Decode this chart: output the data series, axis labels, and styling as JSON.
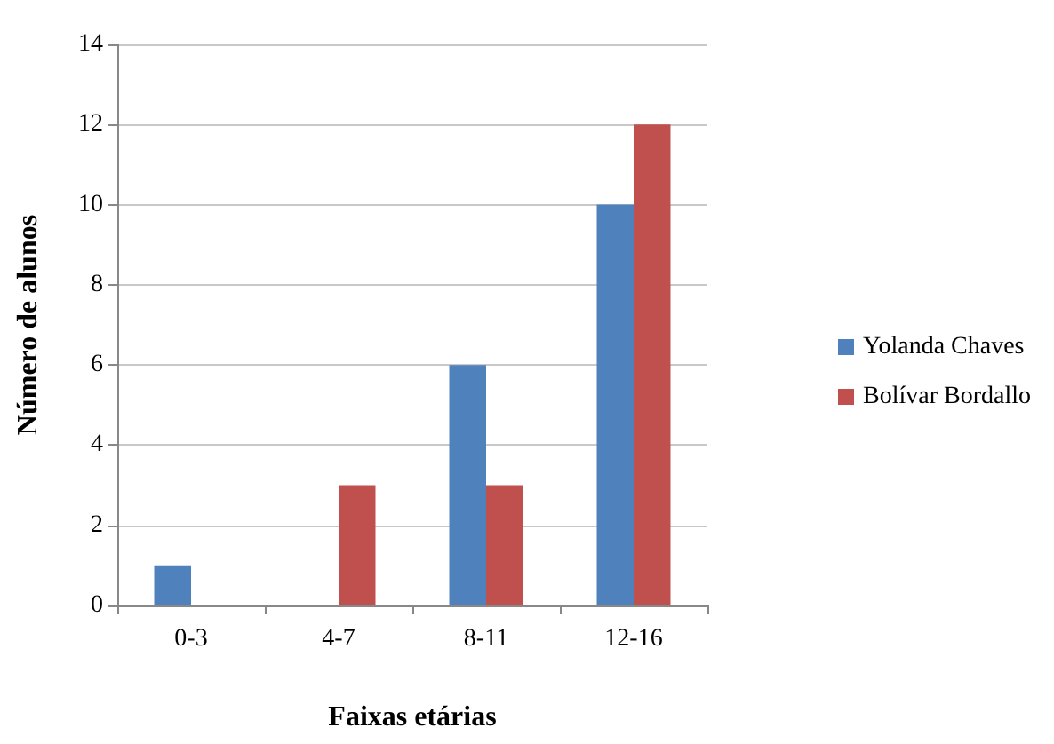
{
  "chart_data": {
    "type": "bar",
    "xlabel": "Faixas etárias",
    "ylabel": "Número de alunos",
    "categories": [
      "0-3",
      "4-7",
      "8-11",
      "12-16"
    ],
    "series": [
      {
        "name": "Yolanda Chaves",
        "color": "#4f81bd",
        "values": [
          1,
          0,
          6,
          10
        ]
      },
      {
        "name": "Bolívar Bordallo",
        "color": "#c0504d",
        "values": [
          0,
          3,
          3,
          12
        ]
      }
    ],
    "ylim": [
      0,
      14
    ],
    "yticks": [
      0,
      2,
      4,
      6,
      8,
      10,
      12,
      14
    ],
    "grid": "y",
    "legend": "right"
  }
}
